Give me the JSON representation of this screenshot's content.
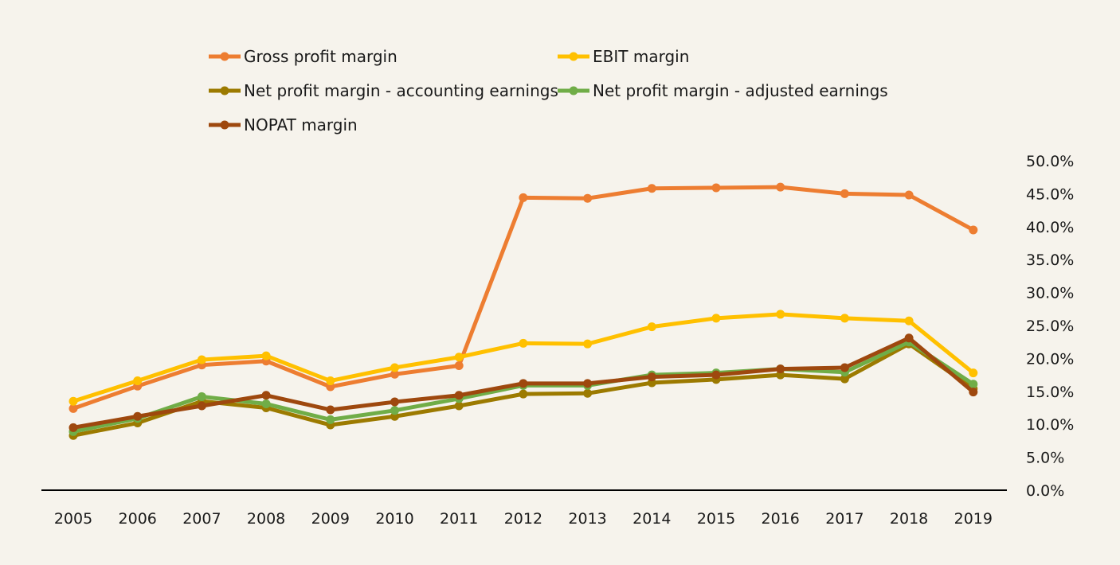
{
  "chart_data": {
    "type": "line",
    "title": "",
    "xlabel": "",
    "ylabel": "",
    "ylim": [
      0,
      50
    ],
    "yticks": [
      "0.0%",
      "5.0%",
      "10.0%",
      "15.0%",
      "20.0%",
      "25.0%",
      "30.0%",
      "35.0%",
      "40.0%",
      "45.0%",
      "50.0%"
    ],
    "y_axis_side": "right",
    "grid": false,
    "legend_position": "top",
    "categories": [
      "2005",
      "2006",
      "2007",
      "2008",
      "2009",
      "2010",
      "2011",
      "2012",
      "2013",
      "2014",
      "2015",
      "2016",
      "2017",
      "2018",
      "2019"
    ],
    "series": [
      {
        "name": "Gross profit margin",
        "color": "#ed7d31",
        "values": [
          12.4,
          15.8,
          19.0,
          19.6,
          15.7,
          17.6,
          18.9,
          44.4,
          44.3,
          45.8,
          45.9,
          46.0,
          45.0,
          44.8,
          39.5
        ]
      },
      {
        "name": "EBIT margin",
        "color": "#ffc000",
        "values": [
          13.5,
          16.6,
          19.8,
          20.4,
          16.6,
          18.6,
          20.2,
          22.3,
          22.2,
          24.8,
          26.1,
          26.7,
          26.1,
          25.7,
          17.8
        ]
      },
      {
        "name": "Net profit margin - accounting earnings",
        "color": "#9c7a00",
        "values": [
          8.3,
          10.2,
          13.5,
          12.5,
          9.9,
          11.2,
          12.8,
          14.6,
          14.7,
          16.3,
          16.8,
          17.5,
          16.9,
          22.2,
          15.4
        ]
      },
      {
        "name": "Net profit margin - adjusted earnings",
        "color": "#70ad47",
        "values": [
          8.9,
          10.9,
          14.2,
          13.1,
          10.7,
          12.1,
          13.9,
          15.9,
          15.9,
          17.5,
          17.8,
          18.4,
          17.9,
          22.5,
          16.1
        ]
      },
      {
        "name": "NOPAT margin",
        "color": "#9e480e",
        "values": [
          9.5,
          11.2,
          12.8,
          14.4,
          12.2,
          13.4,
          14.4,
          16.2,
          16.2,
          17.2,
          17.5,
          18.4,
          18.6,
          23.1,
          14.9
        ]
      }
    ]
  }
}
